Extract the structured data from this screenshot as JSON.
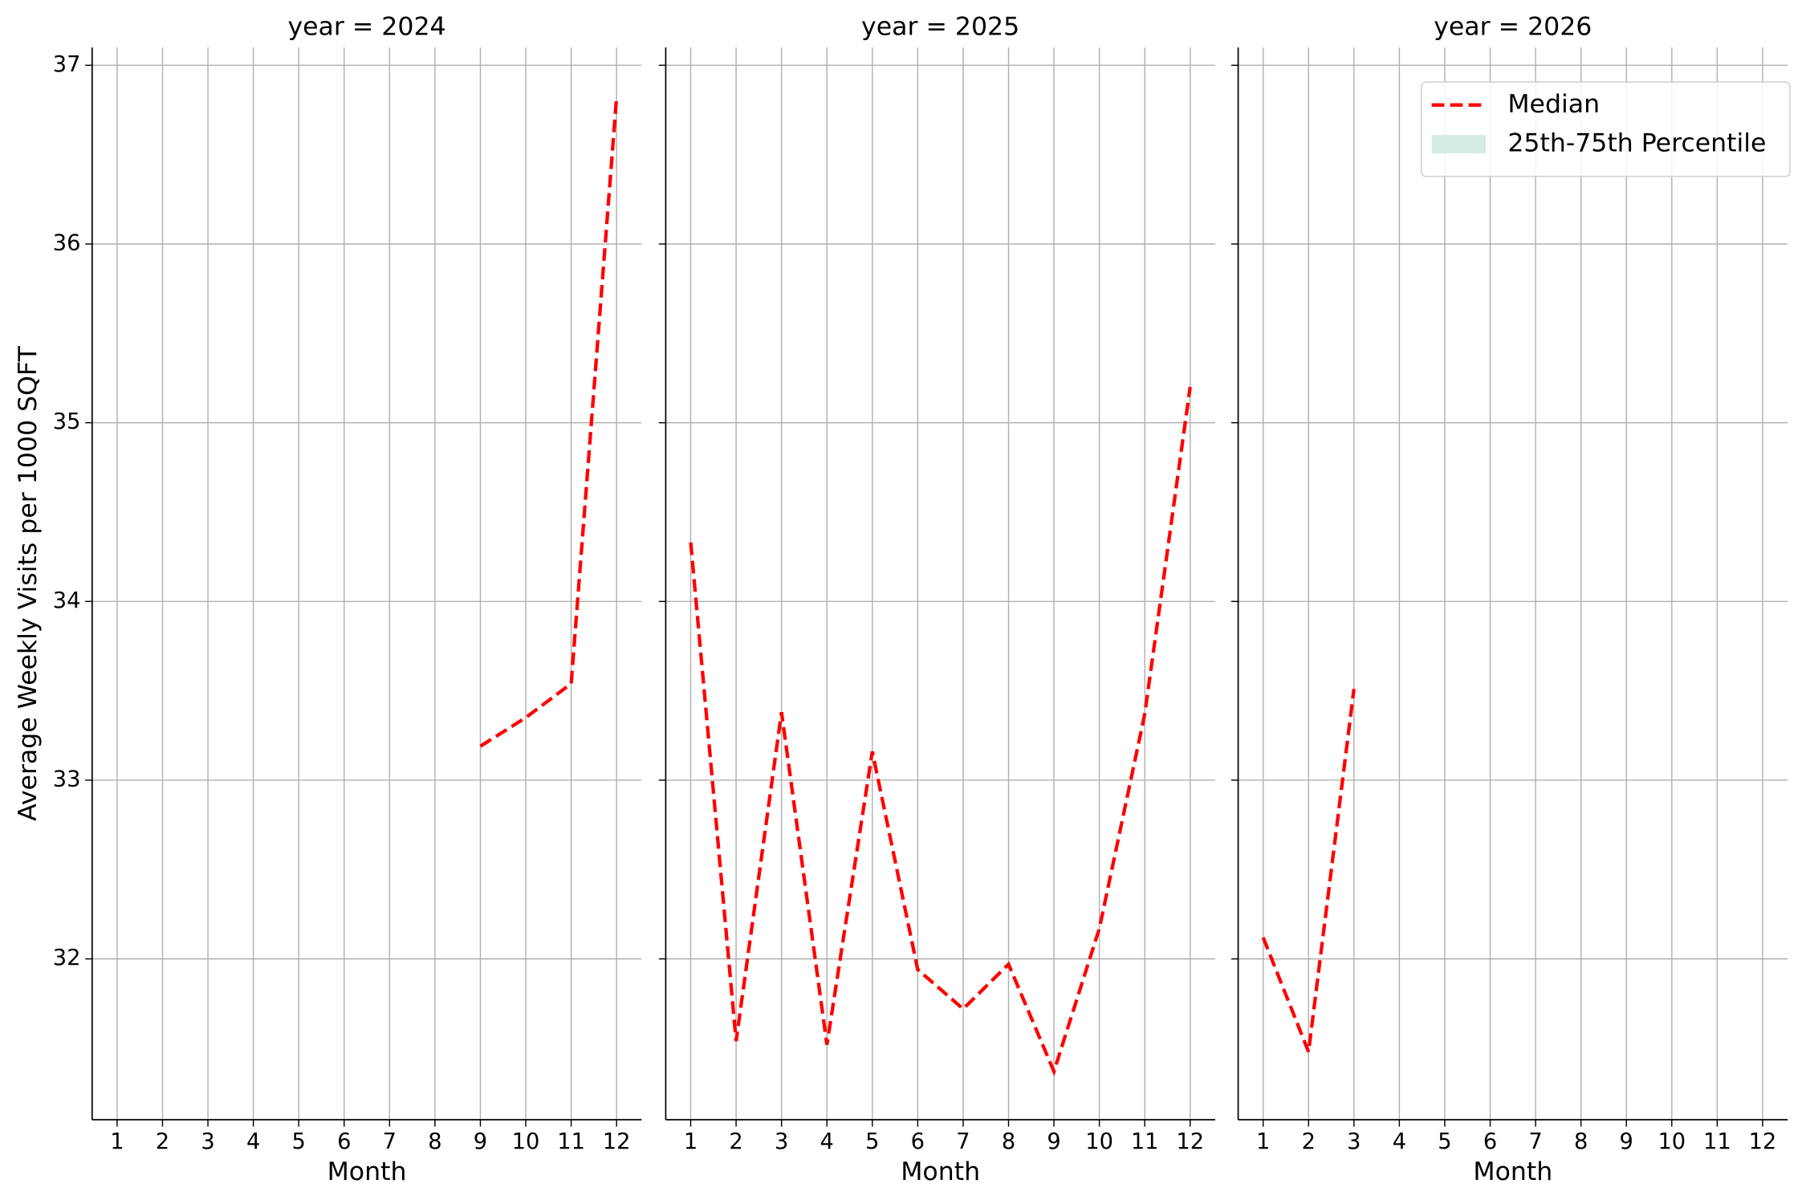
{
  "chart_data": [
    {
      "type": "line",
      "title": "year = 2024",
      "xlabel": "Month",
      "ylabel": "Average Weekly Visits per 1000 SQFT",
      "x": [
        1,
        2,
        3,
        4,
        5,
        6,
        7,
        8,
        9,
        10,
        11,
        12
      ],
      "series": [
        {
          "name": "Median",
          "color": "#ff0000",
          "dash": true,
          "values": [
            null,
            null,
            null,
            null,
            null,
            null,
            null,
            null,
            33.19,
            33.35,
            33.54,
            36.82
          ]
        }
      ],
      "xlim": [
        0.45,
        12.55
      ],
      "ylim": [
        31.1,
        37.1
      ],
      "xticks": [
        1,
        2,
        3,
        4,
        5,
        6,
        7,
        8,
        9,
        10,
        11,
        12
      ],
      "yticks": [
        32,
        33,
        34,
        35,
        36,
        37
      ],
      "ytick_labels": true,
      "grid": true
    },
    {
      "type": "line",
      "title": "year = 2025",
      "xlabel": "Month",
      "x": [
        1,
        2,
        3,
        4,
        5,
        6,
        7,
        8,
        9,
        10,
        11,
        12
      ],
      "series": [
        {
          "name": "Median",
          "color": "#ff0000",
          "dash": true,
          "values": [
            34.33,
            31.54,
            33.38,
            31.52,
            33.16,
            31.94,
            31.72,
            31.97,
            31.37,
            32.17,
            33.37,
            35.2
          ]
        }
      ],
      "xlim": [
        0.45,
        12.55
      ],
      "ylim": [
        31.1,
        37.1
      ],
      "xticks": [
        1,
        2,
        3,
        4,
        5,
        6,
        7,
        8,
        9,
        10,
        11,
        12
      ],
      "yticks": [
        32,
        33,
        34,
        35,
        36,
        37
      ],
      "ytick_labels": false,
      "grid": true
    },
    {
      "type": "line",
      "title": "year = 2026",
      "xlabel": "Month",
      "x": [
        1,
        2,
        3,
        4,
        5,
        6,
        7,
        8,
        9,
        10,
        11,
        12
      ],
      "series": [
        {
          "name": "Median",
          "color": "#ff0000",
          "dash": true,
          "values": [
            32.12,
            31.48,
            33.51,
            null,
            null,
            null,
            null,
            null,
            null,
            null,
            null,
            null
          ]
        }
      ],
      "xlim": [
        0.45,
        12.55
      ],
      "ylim": [
        31.1,
        37.1
      ],
      "xticks": [
        1,
        2,
        3,
        4,
        5,
        6,
        7,
        8,
        9,
        10,
        11,
        12
      ],
      "yticks": [
        32,
        33,
        34,
        35,
        36,
        37
      ],
      "ytick_labels": false,
      "grid": true,
      "legend": {
        "loc": "upper right",
        "items": [
          {
            "name": "Median",
            "color": "#ff0000",
            "kind": "dashed-line"
          },
          {
            "name": "25th-75th Percentile",
            "color": "#d5ece6",
            "kind": "patch"
          }
        ]
      }
    }
  ]
}
